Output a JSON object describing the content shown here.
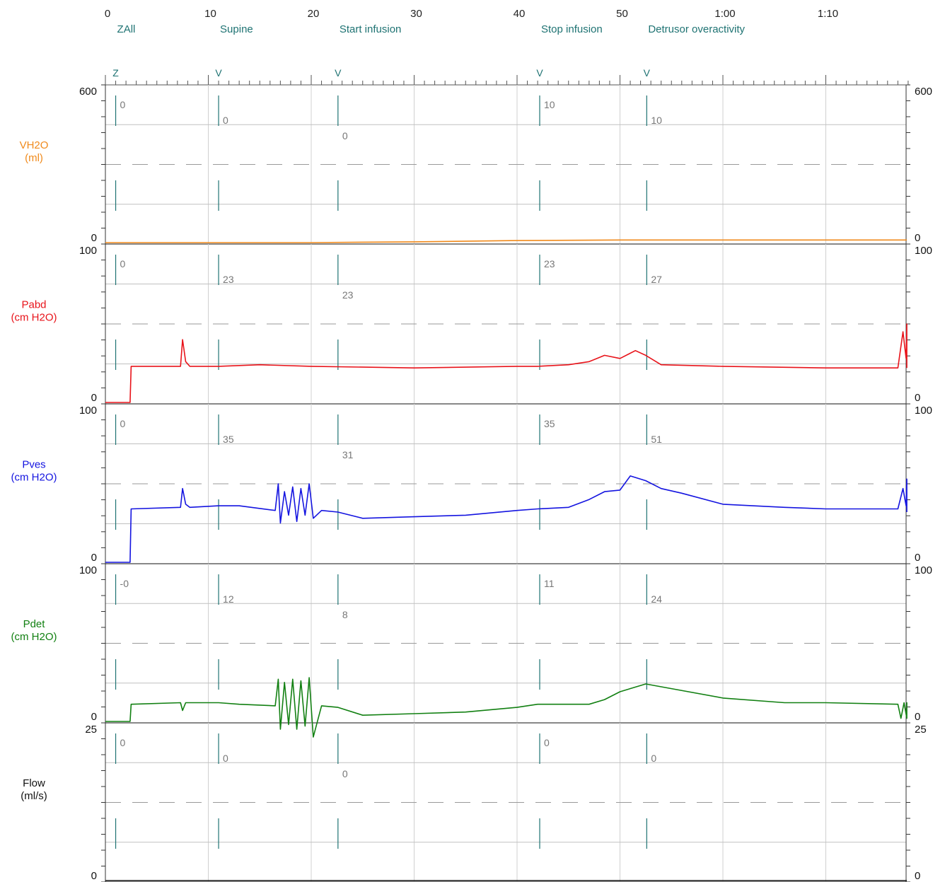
{
  "chart_data": {
    "type": "line",
    "time_axis": {
      "tick_labels": [
        "0",
        "10",
        "20",
        "30",
        "40",
        "50",
        "1:00",
        "1:10"
      ],
      "range_s": [
        0,
        78
      ]
    },
    "events": [
      {
        "t": 1,
        "label": "ZAll",
        "marker": "Z"
      },
      {
        "t": 11,
        "label": "Supine",
        "marker": "V"
      },
      {
        "t": 22.6,
        "label": "Start infusion",
        "marker": "V"
      },
      {
        "t": 42.2,
        "label": "Stop infusion",
        "marker": "V"
      },
      {
        "t": 52.6,
        "label": "Detrusor overactivity",
        "marker": "V"
      }
    ],
    "panels": [
      {
        "name": "VH2O",
        "unit": "(ml)",
        "color": "#f08a1c",
        "ylim": [
          0,
          600
        ],
        "ytop_label": "600",
        "ybottom_label": "0",
        "event_values": [
          "0",
          "0",
          "0",
          "10",
          "10"
        ],
        "series": {
          "t": [
            0,
            2,
            20,
            30,
            40,
            50,
            60,
            78
          ],
          "v": [
            0,
            0,
            0,
            3,
            8,
            10,
            10,
            10
          ]
        }
      },
      {
        "name": "Pabd",
        "unit": "(cm H2O)",
        "color": "#e8131a",
        "ylim": [
          0,
          100
        ],
        "ytop_label": "100",
        "ybottom_label": "0",
        "event_values": [
          "0",
          "23",
          "23",
          "23",
          "27"
        ],
        "series": {
          "t": [
            0,
            2.4,
            2.5,
            7.3,
            7.5,
            7.8,
            8.2,
            11,
            15,
            20,
            30,
            40,
            42,
            45,
            47,
            48.5,
            50,
            51.5,
            52.5,
            54,
            60,
            70,
            77,
            77.5,
            77.8,
            78.1,
            78.4,
            78.7,
            79
          ],
          "v": [
            0,
            0,
            23,
            23,
            40,
            26,
            23,
            23,
            24,
            23,
            22,
            23,
            23,
            24,
            26,
            30,
            28,
            33,
            30,
            24,
            23,
            22,
            22,
            45,
            28,
            50,
            28,
            22,
            22
          ]
        }
      },
      {
        "name": "Pves",
        "unit": "(cm H2O)",
        "color": "#1414e0",
        "ylim": [
          0,
          100
        ],
        "ytop_label": "100",
        "ybottom_label": "0",
        "event_values": [
          "0",
          "35",
          "31",
          "35",
          "51"
        ],
        "series": {
          "t": [
            0,
            2.4,
            2.5,
            7.3,
            7.5,
            7.8,
            8.2,
            11,
            13,
            16.5,
            16.8,
            17,
            17.4,
            17.8,
            18.2,
            18.6,
            19,
            19.4,
            19.8,
            20.2,
            21,
            22.6,
            25,
            30,
            35,
            40,
            42,
            45,
            47,
            48.5,
            50,
            51,
            52.5,
            54,
            56,
            60,
            66,
            70,
            77,
            77.5,
            77.8,
            78.1,
            78.4,
            78.7,
            79
          ],
          "v": [
            0,
            0,
            34,
            35,
            47,
            37,
            35,
            36,
            36,
            33,
            50,
            25,
            45,
            30,
            48,
            26,
            47,
            30,
            50,
            28,
            33,
            32,
            28,
            29,
            30,
            33,
            34,
            35,
            40,
            45,
            46,
            55,
            52,
            47,
            44,
            37,
            35,
            34,
            34,
            47,
            36,
            53,
            36,
            33,
            32
          ]
        }
      },
      {
        "name": "Pdet",
        "unit": "(cm H2O)",
        "color": "#128012",
        "ylim": [
          0,
          100
        ],
        "ytop_label": "100",
        "ybottom_label": "0",
        "event_values": [
          "-0",
          "12",
          "8",
          "11",
          "24"
        ],
        "series": {
          "t": [
            0,
            2.4,
            2.5,
            7.3,
            7.5,
            7.8,
            11,
            13,
            16.5,
            16.8,
            17,
            17.4,
            17.8,
            18.2,
            18.6,
            19,
            19.4,
            19.8,
            20.2,
            21,
            22.6,
            25,
            30,
            35,
            40,
            42,
            45,
            47,
            48.5,
            50,
            52.5,
            55,
            60,
            66,
            70,
            77,
            77.3,
            77.6,
            78,
            78.4,
            78.8,
            79
          ],
          "v": [
            0,
            0,
            11,
            12,
            7,
            12,
            12,
            11,
            10,
            27,
            -5,
            25,
            -2,
            27,
            -5,
            26,
            -3,
            28,
            -10,
            10,
            9,
            4,
            5,
            6,
            9,
            11,
            11,
            11,
            14,
            19,
            24,
            21,
            15,
            12,
            12,
            11,
            2,
            12,
            2,
            12,
            11,
            11
          ]
        }
      },
      {
        "name": "Flow",
        "unit": "(ml/s)",
        "color": "#111111",
        "ylim": [
          0,
          25
        ],
        "ytop_label": "25",
        "ybottom_label": "0",
        "event_values": [
          "0",
          "0",
          "0",
          "0",
          "0"
        ],
        "series": {
          "t": [
            0,
            79
          ],
          "v": [
            0,
            0
          ]
        }
      }
    ]
  }
}
